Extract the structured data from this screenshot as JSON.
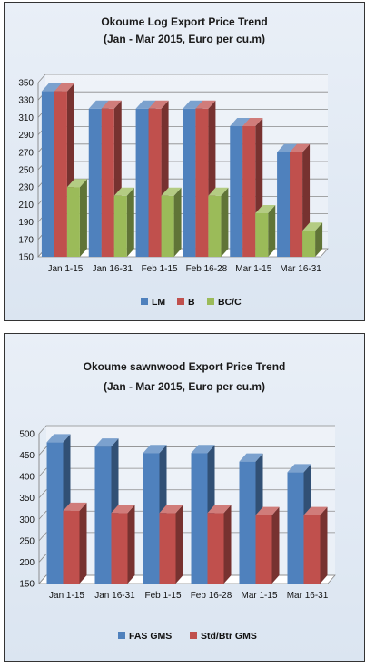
{
  "chart_data": [
    {
      "type": "bar",
      "title": "Okoume Log Export Price Trend",
      "subtitle": "(Jan - Mar 2015, Euro per cu.m)",
      "categories": [
        "Jan 1-15",
        "Jan 16-31",
        "Feb 1-15",
        "Feb 16-28",
        "Mar 1-15",
        "Mar 16-31"
      ],
      "series": [
        {
          "name": "LM",
          "color": "#4f81bd",
          "values": [
            340,
            320,
            320,
            320,
            300,
            270
          ]
        },
        {
          "name": "B",
          "color": "#c0504d",
          "values": [
            340,
            320,
            320,
            320,
            300,
            270
          ]
        },
        {
          "name": "BC/C",
          "color": "#9bbb59",
          "values": [
            230,
            220,
            220,
            220,
            200,
            180
          ]
        }
      ],
      "ylim": [
        150,
        350
      ],
      "yticks": [
        150,
        170,
        190,
        210,
        230,
        250,
        270,
        290,
        310,
        330,
        350
      ],
      "grid": true,
      "legend_position": "bottom"
    },
    {
      "type": "bar",
      "title": "Okoume sawnwood Export Price Trend",
      "subtitle": "(Jan - Mar 2015, Euro per cu.m)",
      "categories": [
        "Jan 1-15",
        "Jan 16-31",
        "Feb 1-15",
        "Feb 16-28",
        "Mar 1-15",
        "Mar 16-31"
      ],
      "series": [
        {
          "name": "FAS GMS",
          "color": "#4f81bd",
          "values": [
            480,
            470,
            455,
            455,
            435,
            410
          ]
        },
        {
          "name": "Std/Btr GMS",
          "color": "#c0504d",
          "values": [
            320,
            315,
            315,
            315,
            310,
            310
          ]
        }
      ],
      "ylim": [
        150,
        500
      ],
      "yticks": [
        150,
        200,
        250,
        300,
        350,
        400,
        450,
        500
      ],
      "grid": true,
      "legend_position": "bottom"
    }
  ]
}
